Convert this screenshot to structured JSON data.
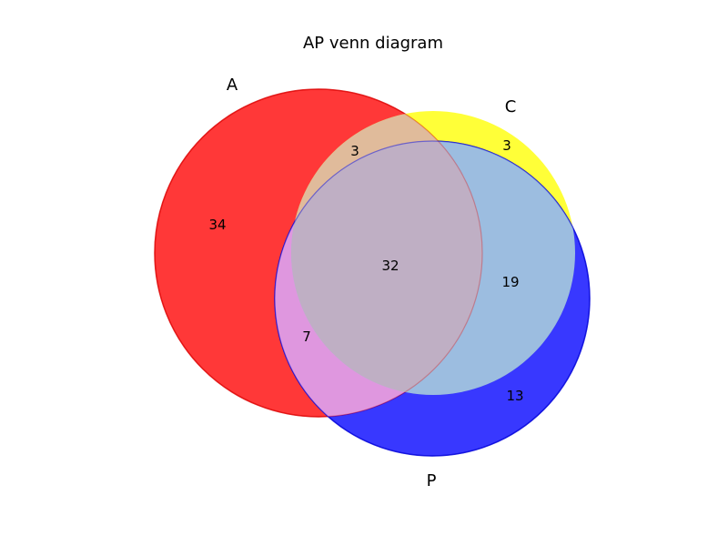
{
  "title": "AP venn diagram",
  "sets": [
    {
      "key": "A",
      "label": "A",
      "color": "#ff0000"
    },
    {
      "key": "C",
      "label": "C",
      "color": "#ffff00"
    },
    {
      "key": "P",
      "label": "P",
      "color": "#0000ff"
    }
  ],
  "regions": {
    "A_only": "34",
    "C_only": "3",
    "P_only": "13",
    "A_C": "3",
    "A_P": "7",
    "C_P": "19",
    "A_C_P": "32"
  }
}
